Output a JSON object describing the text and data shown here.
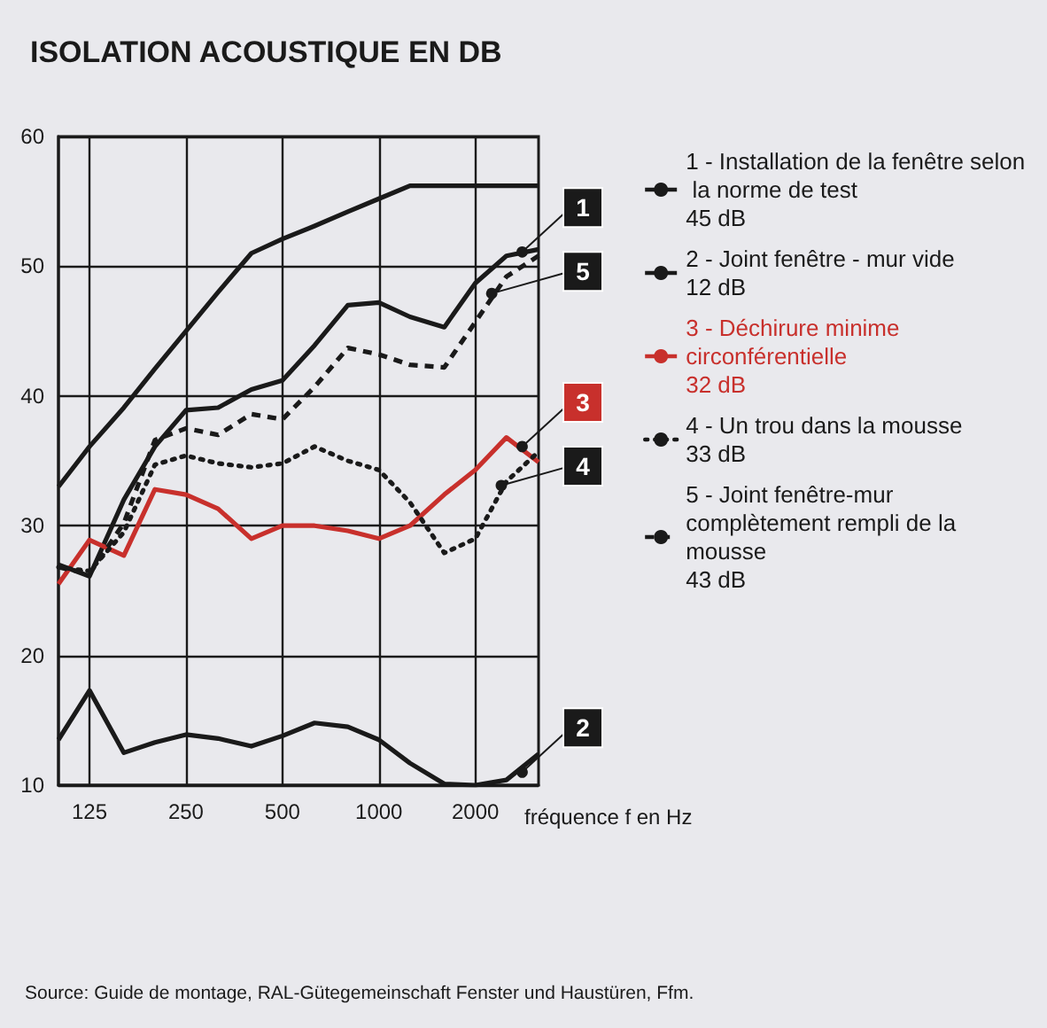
{
  "chart_data": {
    "type": "line",
    "title": "ISOLATION ACOUSTIQUE EN DB",
    "xlabel": "fréquence f en Hz",
    "x": [
      100,
      125,
      160,
      200,
      250,
      315,
      400,
      500,
      630,
      800,
      1000,
      1250,
      1600,
      2000,
      2500,
      3150
    ],
    "series": [
      {
        "color": "#1a1a1a",
        "line_style": "solid",
        "values": [
          33,
          36.1,
          39.1,
          42.1,
          45,
          48,
          51,
          52.1,
          53.1,
          54.2,
          55.2,
          56.2,
          56.2,
          56.2,
          56.2,
          56.2
        ]
      },
      {
        "name": "1 - Installation de la fenêtre selon la norme de test\n45 dB",
        "color": "#1a1a1a",
        "line_style": "solid",
        "values": [
          27,
          26.1,
          32,
          36.1,
          38.9,
          39.1,
          40.5,
          41.2,
          43.9,
          47,
          47.2,
          46.1,
          45.3,
          48.7,
          50.8,
          51.3
        ]
      },
      {
        "name": "2 - Joint fenêtre - mur vide\n12 dB",
        "color": "#1a1a1a",
        "line_style": "solid",
        "values": [
          13.5,
          17.3,
          12.5,
          13.3,
          13.9,
          13.6,
          13,
          13.8,
          14.8,
          14.5,
          13.5,
          11.7,
          10.1,
          10,
          10.4,
          12.4
        ]
      },
      {
        "name": "3 - Déchirure minime circonférentielle\n32 dB",
        "color": "#c8302c",
        "line_style": "solid",
        "values": [
          25.5,
          28.9,
          27.7,
          32.8,
          32.4,
          31.3,
          29,
          30,
          30,
          29.6,
          29,
          30,
          32.4,
          34.3,
          36.8,
          34.9
        ]
      },
      {
        "name": "4 - Un trou dans la mousse\n33 dB",
        "color": "#1a1a1a",
        "line_style": "dotted",
        "values": [
          26.8,
          26.5,
          29.5,
          34.7,
          35.4,
          34.8,
          34.5,
          34.8,
          36.1,
          35,
          34.3,
          31.8,
          27.9,
          29,
          33.4,
          35.7
        ]
      },
      {
        "name": "5 - Joint fenêtre-mur complètement rempli de la mousse\n43 dB",
        "color": "#1a1a1a",
        "line_style": "dashed",
        "values": [
          26.8,
          26.3,
          30.2,
          36.6,
          37.5,
          37,
          38.6,
          38.2,
          40.7,
          43.7,
          43.2,
          42.4,
          42.2,
          45.7,
          49.2,
          50.8
        ]
      }
    ],
    "xlim": [
      100,
      3150
    ],
    "xticks": [
      125,
      250,
      500,
      1000,
      2000
    ],
    "ylim": [
      10,
      60
    ],
    "yticks": [
      10,
      20,
      30,
      40,
      50,
      60
    ],
    "log": "x",
    "grid": true,
    "legend": "right",
    "marker": "none",
    "annotations": [
      {
        "text": "1",
        "x": 2800,
        "y": 51.1
      },
      {
        "text": "5",
        "x": 2250,
        "y": 47.9
      },
      {
        "text": "3",
        "x": 2800,
        "y": 36.1
      },
      {
        "text": "4",
        "x": 2410,
        "y": 33.1
      },
      {
        "text": "2",
        "x": 2800,
        "y": 11
      },
      "Source: Guide de montage, RAL-Gütegemeinschaft Fenster und Haustüren, Ffm."
    ]
  }
}
